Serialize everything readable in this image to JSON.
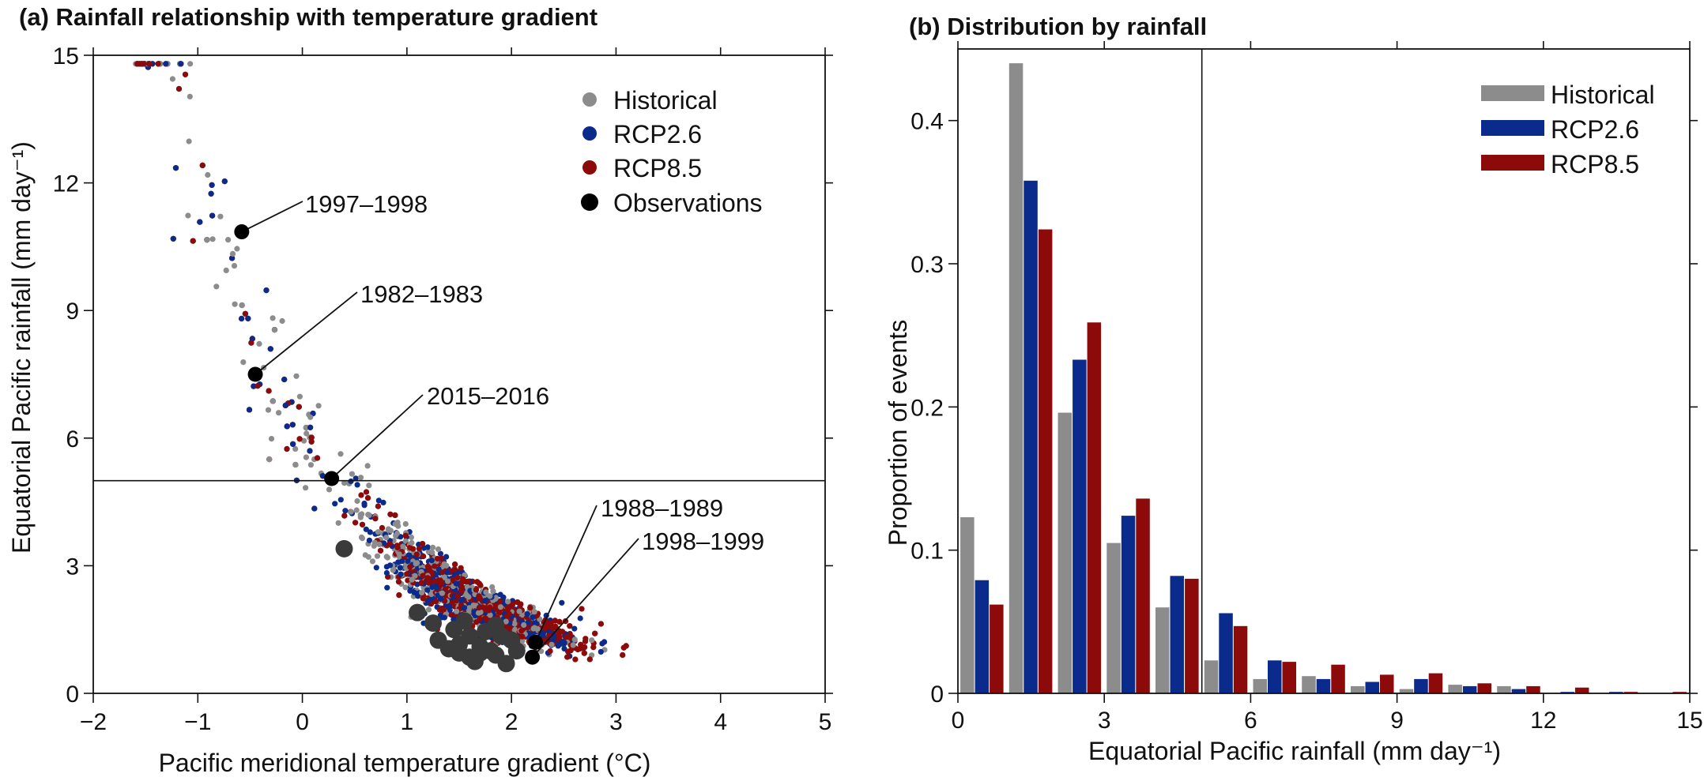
{
  "colors": {
    "historical": "#8c8c8c",
    "rcp26": "#0a2a8c",
    "rcp85": "#8c0a0a",
    "observations": "#000000",
    "axis": "#111111"
  },
  "chart_data": [
    {
      "type": "scatter",
      "title": "(a) Rainfall relationship with temperature gradient",
      "xlabel": "Pacific meridional temperature gradient (°C)",
      "ylabel": "Equatorial Pacific rainfall (mm day⁻¹)",
      "xlim": [
        -2,
        5
      ],
      "ylim": [
        0,
        15
      ],
      "xticks": [
        -2,
        -1,
        0,
        1,
        2,
        3,
        4,
        5
      ],
      "xtick_labels": [
        "−2",
        "−1",
        "0",
        "1",
        "2",
        "3",
        "4",
        "5"
      ],
      "yticks": [
        0,
        3,
        6,
        9,
        12,
        15
      ],
      "ytick_labels": [
        "0",
        "3",
        "6",
        "9",
        "12",
        "15"
      ],
      "threshold_line_y": 5,
      "legend_position": "top-right",
      "series": [
        {
          "name": "Historical",
          "key": "historical",
          "approx_points": 500
        },
        {
          "name": "RCP2.6",
          "key": "rcp26",
          "approx_points": 500
        },
        {
          "name": "RCP8.5",
          "key": "rcp85",
          "approx_points": 1000
        },
        {
          "name": "Observations",
          "key": "observations"
        }
      ],
      "observations": [
        {
          "label": "1997–1998",
          "x": -0.58,
          "y": 10.85
        },
        {
          "label": "1982–1983",
          "x": -0.45,
          "y": 7.5
        },
        {
          "label": "2015–2016",
          "x": 0.28,
          "y": 5.05
        },
        {
          "label": "1988–1989",
          "x": 2.23,
          "y": 1.2
        },
        {
          "label": "1998–1999",
          "x": 2.2,
          "y": 0.85
        }
      ],
      "observations_unlabelled": [
        [
          0.4,
          3.4
        ],
        [
          1.1,
          1.9
        ],
        [
          1.25,
          1.65
        ],
        [
          1.45,
          1.5
        ],
        [
          1.3,
          1.25
        ],
        [
          1.5,
          1.15
        ],
        [
          1.6,
          1.35
        ],
        [
          1.7,
          1.1
        ],
        [
          1.5,
          0.95
        ],
        [
          1.65,
          0.75
        ],
        [
          1.85,
          0.9
        ],
        [
          1.95,
          0.7
        ],
        [
          2.0,
          1.25
        ],
        [
          1.75,
          1.45
        ],
        [
          1.85,
          1.6
        ],
        [
          1.55,
          1.7
        ],
        [
          1.4,
          1.05
        ],
        [
          1.8,
          1.0
        ],
        [
          1.9,
          1.35
        ],
        [
          2.05,
          1.0
        ],
        [
          1.6,
          0.85
        ],
        [
          1.7,
          0.95
        ]
      ]
    },
    {
      "type": "bar",
      "title": "(b) Distribution by rainfall",
      "xlabel": "Equatorial Pacific rainfall (mm day⁻¹)",
      "ylabel": "Proportion of events",
      "xlim": [
        0,
        15
      ],
      "ylim": [
        0,
        0.45
      ],
      "xticks": [
        0,
        3,
        6,
        9,
        12,
        15
      ],
      "xtick_labels": [
        "0",
        "3",
        "6",
        "9",
        "12",
        "15"
      ],
      "yticks": [
        0,
        0.1,
        0.2,
        0.3,
        0.4
      ],
      "ytick_labels": [
        "0",
        "0.1",
        "0.2",
        "0.3",
        "0.4"
      ],
      "threshold_line_x": 5,
      "legend_position": "top-right",
      "bin_edges": [
        0,
        1,
        2,
        3,
        4,
        5,
        6,
        7,
        8,
        9,
        10,
        11,
        12,
        13,
        14,
        15
      ],
      "series": [
        {
          "name": "Historical",
          "key": "historical",
          "values": [
            0.123,
            0.44,
            0.196,
            0.105,
            0.06,
            0.023,
            0.01,
            0.012,
            0.005,
            0.003,
            0.006,
            0.005,
            0.0,
            0.0,
            0.0
          ]
        },
        {
          "name": "RCP2.6",
          "key": "rcp26",
          "values": [
            0.079,
            0.358,
            0.233,
            0.124,
            0.082,
            0.056,
            0.023,
            0.01,
            0.008,
            0.01,
            0.005,
            0.003,
            0.001,
            0.001,
            0.0
          ]
        },
        {
          "name": "RCP8.5",
          "key": "rcp85",
          "values": [
            0.062,
            0.324,
            0.259,
            0.136,
            0.08,
            0.047,
            0.022,
            0.02,
            0.013,
            0.014,
            0.007,
            0.005,
            0.004,
            0.001,
            0.001
          ]
        }
      ]
    }
  ]
}
